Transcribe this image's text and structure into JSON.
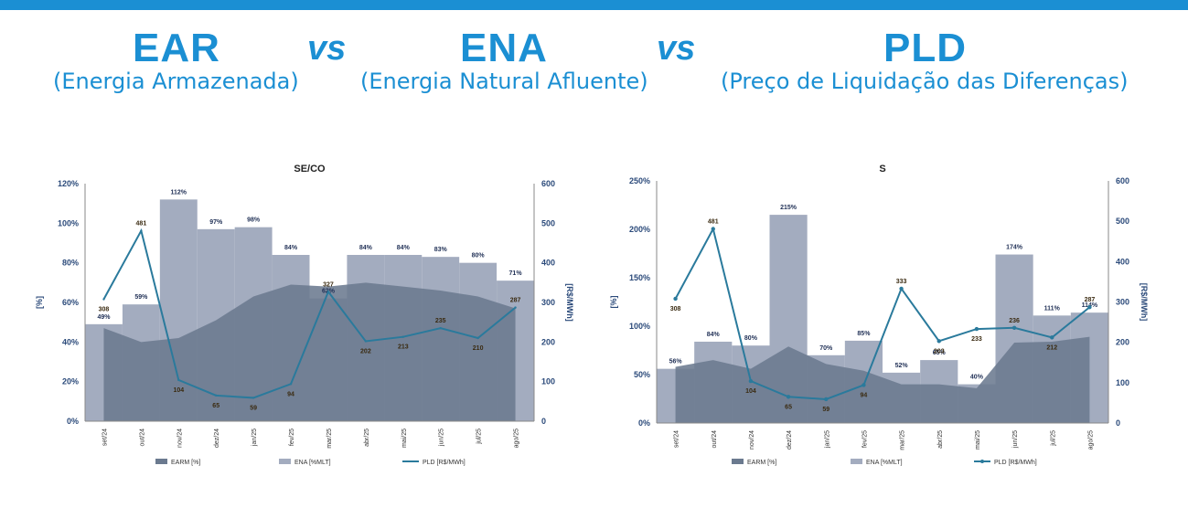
{
  "header": {
    "t1": "EAR",
    "s1": "(Energia Armazenada)",
    "vs1": "vs",
    "t2": "ENA",
    "s2": "(Energia Natural Afluente)",
    "vs2": "vs",
    "t3": "PLD",
    "s3": "(Preço de Liquidação das Diferenças)"
  },
  "colors": {
    "accent": "#1b8fd3",
    "earm": "#6b7a8f",
    "ena": "#a3acbf",
    "pld": "#2a7a9c",
    "axis": "#2b4a7a"
  },
  "chart_data": [
    {
      "type": "bar",
      "title": "SE/CO",
      "categories": [
        "set/24",
        "out/24",
        "nov/24",
        "dez/24",
        "jan/25",
        "fev/25",
        "mar/25",
        "abr/25",
        "mai/25",
        "jun/25",
        "jul/25",
        "ago/25"
      ],
      "ylabel": "[%]",
      "y2label": "[R$/MWh]",
      "ylim": [
        0,
        120
      ],
      "yticks": [
        "0%",
        "20%",
        "40%",
        "60%",
        "80%",
        "100%",
        "120%"
      ],
      "y2lim": [
        0,
        600
      ],
      "y2ticks": [
        "0",
        "100",
        "200",
        "300",
        "400",
        "500",
        "600"
      ],
      "series": [
        {
          "name": "EARM [%]",
          "kind": "area",
          "values": [
            47,
            40,
            42,
            51,
            63,
            69,
            68,
            70,
            68,
            66,
            63,
            57
          ]
        },
        {
          "name": "ENA [%MLT]",
          "kind": "bar",
          "values": [
            49,
            59,
            112,
            97,
            98,
            84,
            62,
            84,
            84,
            83,
            80,
            71
          ],
          "labels": [
            "49%",
            "59%",
            "112%",
            "97%",
            "98%",
            "84%",
            "62%",
            "84%",
            "84%",
            "83%",
            "80%",
            "71%"
          ]
        },
        {
          "name": "PLD [R$/MWh]",
          "kind": "line",
          "axis": "right",
          "values": [
            308,
            481,
            104,
            65,
            59,
            94,
            327,
            202,
            213,
            235,
            210,
            287
          ],
          "labels": [
            "308",
            "481",
            "104",
            "65",
            "59",
            "94",
            "327",
            "202",
            "213",
            "235",
            "210",
            "287"
          ]
        }
      ],
      "legend": "bottom"
    },
    {
      "type": "bar",
      "title": "S",
      "categories": [
        "set/24",
        "out/24",
        "nov/24",
        "dez/24",
        "jan/25",
        "fev/25",
        "mar/25",
        "abr/25",
        "mai/25",
        "jun/25",
        "jul/25",
        "ago/25"
      ],
      "ylabel": "[%]",
      "y2label": "[R$/MWh]",
      "ylim": [
        0,
        250
      ],
      "yticks": [
        "0%",
        "50%",
        "100%",
        "150%",
        "200%",
        "250%"
      ],
      "y2lim": [
        0,
        600
      ],
      "y2ticks": [
        "0",
        "100",
        "200",
        "300",
        "400",
        "500",
        "600"
      ],
      "series": [
        {
          "name": "EARM [%]",
          "kind": "area",
          "values": [
            58,
            65,
            56,
            79,
            61,
            54,
            40,
            40,
            36,
            83,
            84,
            89
          ]
        },
        {
          "name": "ENA [%MLT]",
          "kind": "bar",
          "values": [
            56,
            84,
            80,
            215,
            70,
            85,
            52,
            65,
            40,
            174,
            111,
            114
          ],
          "labels": [
            "56%",
            "84%",
            "80%",
            "215%",
            "70%",
            "85%",
            "52%",
            "65%",
            "40%",
            "174%",
            "111%",
            "114%"
          ]
        },
        {
          "name": "PLD [R$/MWh]",
          "kind": "line",
          "axis": "right",
          "values": [
            308,
            481,
            104,
            65,
            59,
            94,
            333,
            203,
            233,
            236,
            212,
            287
          ],
          "labels": [
            "308",
            "481",
            "104",
            "65",
            "59",
            "94",
            "333",
            "203",
            "233",
            "236",
            "212",
            "287"
          ]
        }
      ],
      "legend": "bottom"
    }
  ]
}
